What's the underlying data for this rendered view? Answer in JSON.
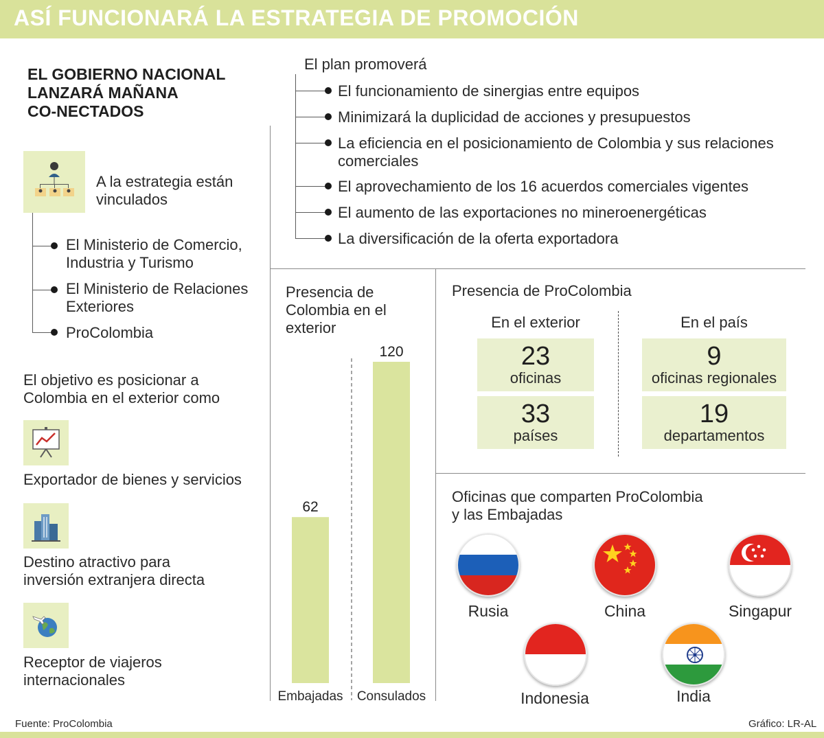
{
  "title": "ASÍ FUNCIONARÁ LA ESTRATEGIA DE PROMOCIÓN",
  "left": {
    "heading": [
      "EL GOBIERNO NACIONAL",
      "LANZARÁ MAÑANA",
      "CO-NECTADOS"
    ],
    "linked_title": [
      "A la estrategia están",
      "vinculados"
    ],
    "linked_items": [
      [
        "El Ministerio de Comercio,",
        "Industria y Turismo"
      ],
      [
        "El Ministerio de Relaciones",
        "Exteriores"
      ],
      [
        "ProColombia"
      ]
    ],
    "objective": [
      "El objetivo es posicionar a",
      "Colombia en el exterior como"
    ],
    "roles": [
      {
        "icon": "presentation-chart-icon",
        "text": [
          "Exportador de bienes y servicios"
        ]
      },
      {
        "icon": "city-buildings-icon",
        "text": [
          "Destino atractivo para",
          "inversión extranjera directa"
        ]
      },
      {
        "icon": "globe-plane-icon",
        "text": [
          "Receptor de viajeros",
          "internacionales"
        ]
      }
    ]
  },
  "plan": {
    "title": "El plan promoverá",
    "items": [
      [
        "El funcionamiento de sinergias entre equipos"
      ],
      [
        "Minimizará la duplicidad de acciones y presupuestos"
      ],
      [
        "La eficiencia en el posicionamiento de Colombia y sus relaciones",
        "comerciales"
      ],
      [
        "El aprovechamiento de los 16 acuerdos comerciales vigentes"
      ],
      [
        "El aumento de las exportaciones no mineroenergéticas"
      ],
      [
        "La diversificación de la oferta exportadora"
      ]
    ]
  },
  "chart_data": {
    "type": "bar",
    "title": "Presencia de Colombia en el exterior",
    "categories": [
      "Embajadas",
      "Consulados"
    ],
    "values": [
      62,
      120
    ],
    "ylim": [
      0,
      120
    ],
    "grid": false
  },
  "presence": {
    "title": "Presencia de ProColombia",
    "abroad": {
      "title": "En el exterior",
      "stats": [
        {
          "value": "23",
          "label": "oficinas"
        },
        {
          "value": "33",
          "label": "países"
        }
      ]
    },
    "domestic": {
      "title": "En el país",
      "stats": [
        {
          "value": "9",
          "label": "oficinas regionales"
        },
        {
          "value": "19",
          "label": "departamentos"
        }
      ]
    }
  },
  "shared": {
    "title": [
      "Oficinas que comparten ProColombia",
      "y las Embajadas"
    ],
    "countries": [
      "Rusia",
      "China",
      "Singapur",
      "Indonesia",
      "India"
    ]
  },
  "footer": {
    "source": "Fuente: ProColombia",
    "credit": "Gráfico: LR-AL"
  },
  "colors": {
    "accent": "#d9e29a",
    "panel": "#eaf0cf",
    "bar": "#dae49e"
  }
}
